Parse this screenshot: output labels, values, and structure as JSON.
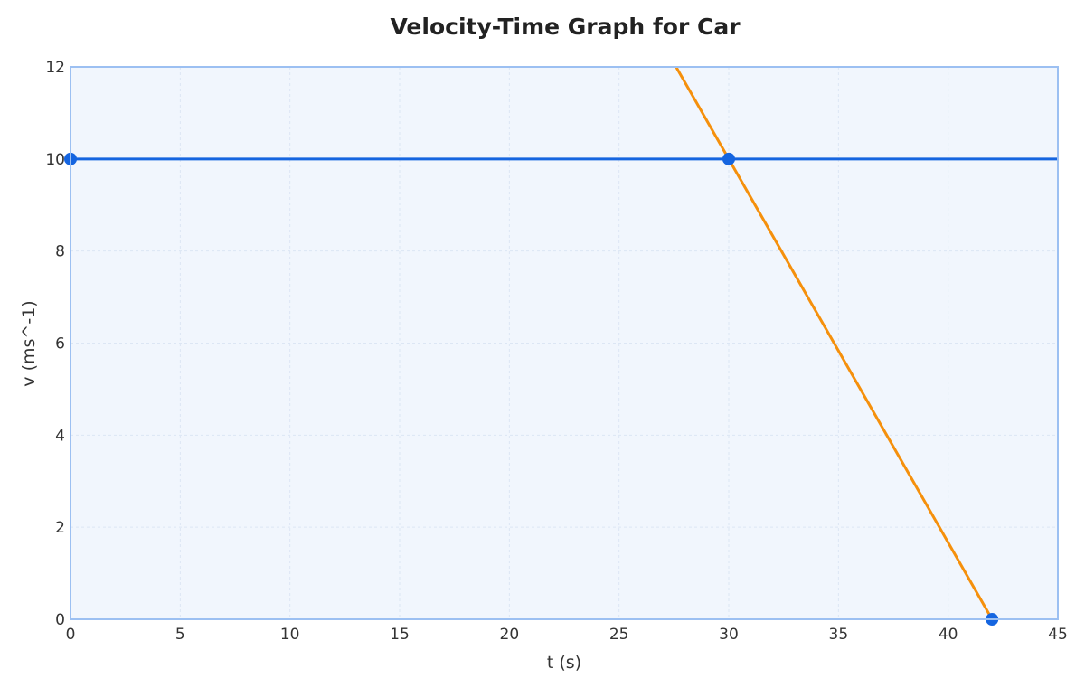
{
  "chart_data": {
    "type": "line",
    "title": "Velocity-Time Graph for Car",
    "xlabel": "t (s)",
    "ylabel": "v (ms^-1)",
    "xlim": [
      0,
      45
    ],
    "ylim": [
      0,
      12
    ],
    "xticks": [
      0,
      5,
      10,
      15,
      20,
      25,
      30,
      35,
      40,
      45
    ],
    "yticks": [
      0,
      2,
      4,
      6,
      8,
      10,
      12
    ],
    "grid": true,
    "series": [
      {
        "color": "#1565e0",
        "x": [
          0,
          45
        ],
        "y": [
          10,
          10
        ]
      },
      {
        "color": "#f5900c",
        "x": [
          27.6,
          42
        ],
        "y": [
          12,
          0
        ]
      }
    ],
    "points": {
      "color": "#1565e0",
      "x": [
        0,
        30,
        42
      ],
      "y": [
        10,
        10,
        0
      ]
    },
    "colors": {
      "plot_background": "#f1f6fd",
      "plot_border": "#9cc0f2",
      "grid": "#dce6f4"
    }
  }
}
